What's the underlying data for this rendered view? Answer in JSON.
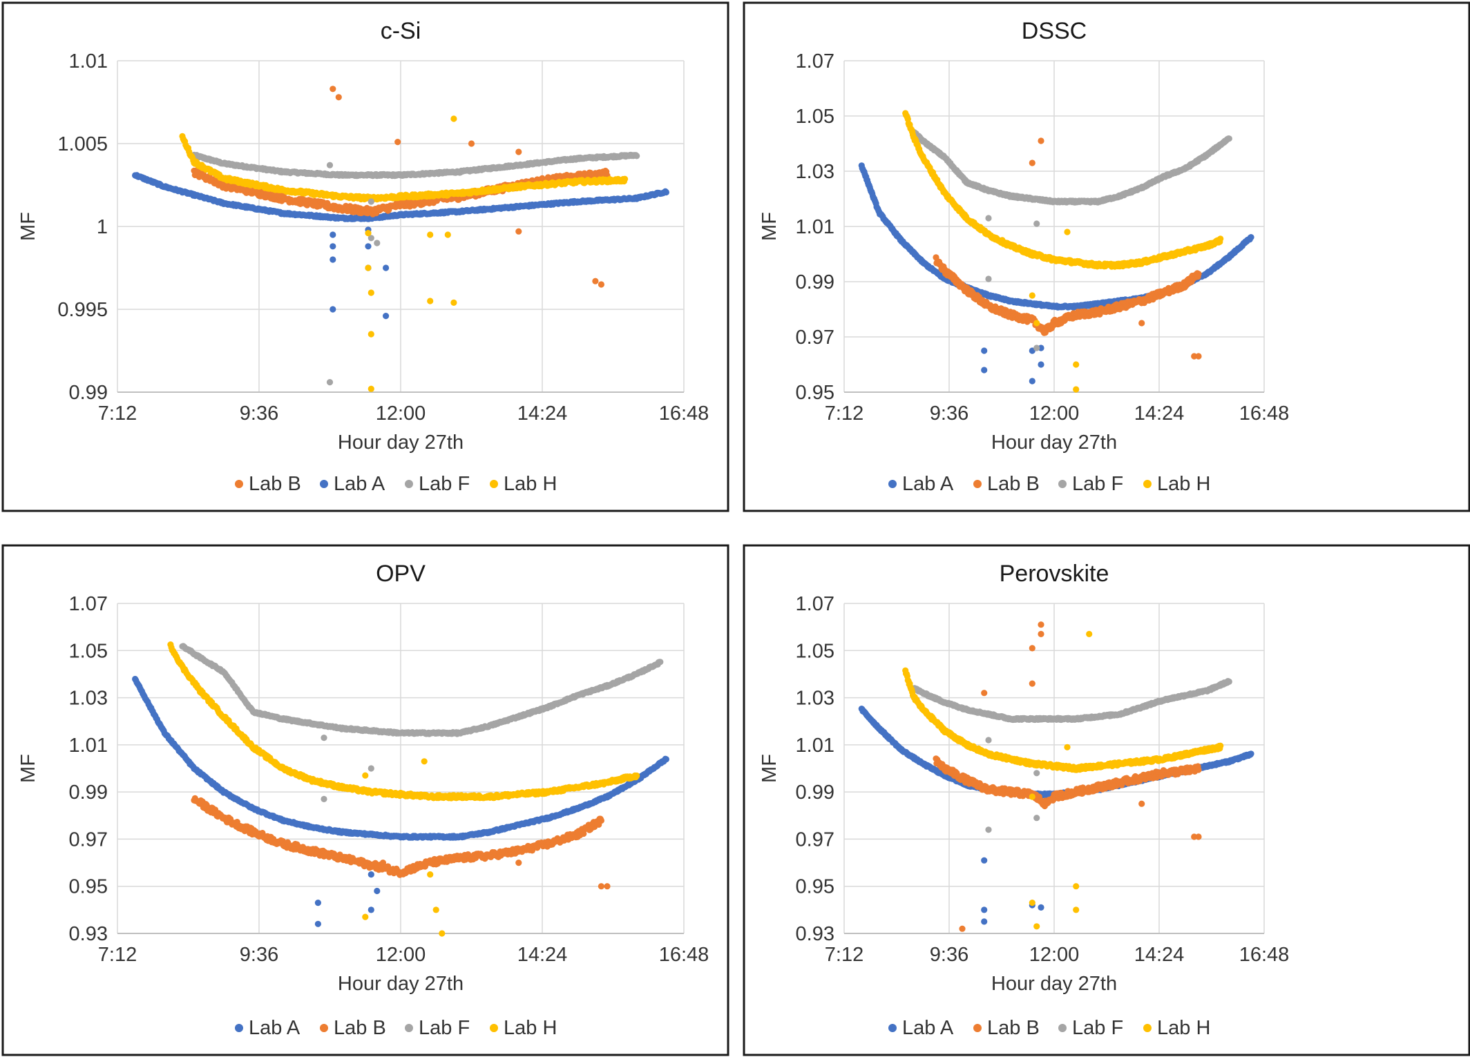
{
  "chart_data": [
    {
      "type": "scatter",
      "title": "c-Si",
      "xlabel": "Hour day 27th",
      "ylabel": "MF",
      "xlim_hours": [
        7.2,
        16.8
      ],
      "ylim": [
        0.99,
        1.01
      ],
      "x_ticks": [
        "7:12",
        "9:36",
        "12:00",
        "14:24",
        "16:48"
      ],
      "y_ticks": [
        "0.99",
        "0.995",
        "1",
        "1.005",
        "1.01"
      ],
      "grid": "horizontal",
      "legend_position": "bottom",
      "legend_order": [
        "Lab B",
        "Lab A",
        "Lab F",
        "Lab H"
      ],
      "series": [
        {
          "name": "Lab A",
          "color": "#4472C4",
          "x_hours": [
            7.5,
            8.0,
            9.0,
            10.0,
            11.0,
            11.5,
            12.0,
            13.0,
            14.0,
            15.0,
            16.0,
            16.5
          ],
          "y": [
            1.0031,
            1.0024,
            1.0014,
            1.0008,
            1.0005,
            1.0005,
            1.0007,
            1.0009,
            1.0012,
            1.0015,
            1.0017,
            1.0021
          ]
        },
        {
          "name": "Lab B",
          "color": "#ED7D31",
          "x_hours": [
            8.5,
            9.0,
            10.0,
            11.0,
            11.5,
            12.0,
            13.0,
            14.0,
            14.5,
            15.0,
            15.5
          ],
          "y": [
            1.0033,
            1.0025,
            1.0017,
            1.0011,
            1.0009,
            1.0013,
            1.0018,
            1.0025,
            1.0028,
            1.003,
            1.0032
          ]
        },
        {
          "name": "Lab F",
          "color": "#A5A5A5",
          "x_hours": [
            8.5,
            9.0,
            10.0,
            11.0,
            12.0,
            13.0,
            14.0,
            15.0,
            16.0
          ],
          "y": [
            1.0043,
            1.0038,
            1.0033,
            1.0031,
            1.0031,
            1.0033,
            1.0037,
            1.0041,
            1.0043
          ]
        },
        {
          "name": "Lab H",
          "color": "#FFC000",
          "x_hours": [
            8.3,
            8.5,
            9.0,
            10.0,
            11.0,
            11.5,
            12.0,
            13.0,
            14.0,
            15.0,
            15.8
          ],
          "y": [
            1.0054,
            1.0039,
            1.0029,
            1.0022,
            1.0018,
            1.0017,
            1.0018,
            1.002,
            1.0024,
            1.0027,
            1.0028
          ]
        }
      ],
      "outliers": [
        {
          "series": "Lab B",
          "x_hours": [
            10.85,
            10.95,
            11.95,
            13.2,
            14.0,
            15.3,
            15.4,
            14.0
          ],
          "y": [
            1.0083,
            1.0078,
            1.0051,
            1.005,
            1.0045,
            0.9967,
            0.9965,
            0.9997
          ]
        },
        {
          "series": "Lab A",
          "x_hours": [
            10.85,
            10.85,
            10.85,
            10.85,
            11.45,
            11.45,
            11.45,
            11.75,
            11.75
          ],
          "y": [
            0.9995,
            0.9988,
            0.998,
            0.995,
            0.9998,
            0.9988,
            0.9975,
            0.9975,
            0.9946
          ]
        },
        {
          "series": "Lab F",
          "x_hours": [
            10.8,
            10.8,
            11.5,
            11.5,
            11.6
          ],
          "y": [
            1.0037,
            0.9906,
            1.0015,
            0.9993,
            0.999
          ]
        },
        {
          "series": "Lab H",
          "x_hours": [
            11.45,
            11.45,
            11.5,
            11.5,
            11.5,
            12.5,
            12.5,
            12.8,
            12.9,
            12.9
          ],
          "y": [
            0.9996,
            0.9975,
            0.996,
            0.9935,
            0.9902,
            0.9995,
            0.9955,
            0.9995,
            0.9954,
            1.0065
          ]
        }
      ]
    },
    {
      "type": "scatter",
      "title": "DSSC",
      "xlabel": "Hour day 27th",
      "ylabel": "MF",
      "xlim_hours": [
        7.2,
        16.8
      ],
      "ylim": [
        0.95,
        1.07
      ],
      "x_ticks": [
        "7:12",
        "9:36",
        "12:00",
        "14:24",
        "16:48"
      ],
      "y_ticks": [
        "0.95",
        "0.97",
        "0.99",
        "1.01",
        "1.03",
        "1.05",
        "1.07"
      ],
      "grid": "horizontal",
      "legend_position": "bottom",
      "legend_order": [
        "Lab A",
        "Lab B",
        "Lab F",
        "Lab H"
      ],
      "series": [
        {
          "name": "Lab A",
          "color": "#4472C4",
          "x_hours": [
            7.6,
            8.0,
            8.5,
            9.0,
            9.5,
            10.0,
            10.5,
            11.0,
            11.5,
            12.0,
            12.5,
            13.0,
            13.5,
            14.0,
            14.5,
            15.0,
            15.5,
            16.0,
            16.5
          ],
          "y": [
            1.032,
            1.015,
            1.005,
            0.997,
            0.991,
            0.988,
            0.985,
            0.983,
            0.982,
            0.981,
            0.981,
            0.982,
            0.983,
            0.984,
            0.986,
            0.989,
            0.993,
            0.999,
            1.006
          ]
        },
        {
          "name": "Lab B",
          "color": "#ED7D31",
          "x_hours": [
            9.3,
            9.5,
            10.0,
            10.5,
            11.0,
            11.5,
            11.8,
            12.0,
            12.5,
            13.0,
            13.5,
            14.0,
            14.5,
            15.0,
            15.3
          ],
          "y": [
            0.998,
            0.994,
            0.987,
            0.981,
            0.978,
            0.976,
            0.972,
            0.975,
            0.978,
            0.979,
            0.981,
            0.983,
            0.986,
            0.989,
            0.993
          ]
        },
        {
          "name": "Lab F",
          "color": "#A5A5A5",
          "x_hours": [
            8.8,
            9.0,
            9.5,
            10.0,
            10.5,
            11.0,
            11.5,
            12.0,
            12.5,
            13.0,
            13.5,
            14.0,
            14.5,
            15.0,
            15.5,
            16.0
          ],
          "y": [
            1.044,
            1.041,
            1.035,
            1.026,
            1.023,
            1.021,
            1.02,
            1.019,
            1.019,
            1.019,
            1.021,
            1.024,
            1.028,
            1.031,
            1.036,
            1.042
          ]
        },
        {
          "name": "Lab H",
          "color": "#FFC000",
          "x_hours": [
            8.6,
            8.8,
            9.0,
            9.5,
            10.0,
            10.5,
            11.0,
            11.5,
            12.0,
            12.5,
            13.0,
            13.5,
            14.0,
            14.5,
            15.0,
            15.5,
            15.8
          ],
          "y": [
            1.051,
            1.042,
            1.035,
            1.022,
            1.013,
            1.007,
            1.003,
            1.0,
            0.998,
            0.997,
            0.996,
            0.996,
            0.997,
            0.999,
            1.001,
            1.003,
            1.005
          ]
        }
      ],
      "outliers": [
        {
          "series": "Lab B",
          "x_hours": [
            11.5,
            11.7,
            14.0,
            15.2,
            15.3
          ],
          "y": [
            1.033,
            1.041,
            0.975,
            0.963,
            0.963
          ]
        },
        {
          "series": "Lab A",
          "x_hours": [
            10.4,
            10.4,
            11.5,
            11.5,
            11.7,
            11.7
          ],
          "y": [
            0.958,
            0.965,
            0.954,
            0.965,
            0.96,
            0.966
          ]
        },
        {
          "series": "Lab F",
          "x_hours": [
            10.5,
            10.5,
            11.6,
            11.6
          ],
          "y": [
            1.013,
            0.991,
            1.011,
            0.966
          ]
        },
        {
          "series": "Lab H",
          "x_hours": [
            11.5,
            11.6,
            12.3,
            12.5,
            12.5
          ],
          "y": [
            0.985,
            0.975,
            1.008,
            0.951,
            0.96
          ]
        }
      ]
    },
    {
      "type": "scatter",
      "title": "OPV",
      "xlabel": "Hour day 27th",
      "ylabel": "MF",
      "xlim_hours": [
        7.2,
        16.8
      ],
      "ylim": [
        0.93,
        1.07
      ],
      "x_ticks": [
        "7:12",
        "9:36",
        "12:00",
        "14:24",
        "16:48"
      ],
      "y_ticks": [
        "0.93",
        "0.95",
        "0.97",
        "0.99",
        "1.01",
        "1.03",
        "1.05",
        "1.07"
      ],
      "grid": "horizontal",
      "legend_position": "bottom",
      "legend_order": [
        "Lab A",
        "Lab B",
        "Lab F",
        "Lab H"
      ],
      "series": [
        {
          "name": "Lab A",
          "color": "#4472C4",
          "x_hours": [
            7.5,
            7.8,
            8.0,
            8.5,
            9.0,
            9.5,
            10.0,
            10.5,
            11.0,
            11.5,
            12.0,
            12.5,
            13.0,
            13.5,
            14.0,
            14.5,
            15.0,
            15.5,
            16.0,
            16.5
          ],
          "y": [
            1.038,
            1.024,
            1.015,
            1.0,
            0.99,
            0.983,
            0.978,
            0.975,
            0.973,
            0.972,
            0.971,
            0.971,
            0.971,
            0.973,
            0.976,
            0.979,
            0.983,
            0.988,
            0.995,
            1.004
          ]
        },
        {
          "name": "Lab B",
          "color": "#ED7D31",
          "x_hours": [
            8.5,
            9.0,
            9.5,
            10.0,
            10.5,
            11.0,
            11.5,
            12.0,
            12.5,
            13.0,
            13.5,
            14.0,
            14.5,
            15.0,
            15.4
          ],
          "y": [
            0.987,
            0.979,
            0.973,
            0.968,
            0.965,
            0.962,
            0.959,
            0.956,
            0.96,
            0.962,
            0.963,
            0.965,
            0.968,
            0.972,
            0.978
          ]
        },
        {
          "name": "Lab F",
          "color": "#A5A5A5",
          "x_hours": [
            8.3,
            8.6,
            9.0,
            9.5,
            10.0,
            10.5,
            11.0,
            11.5,
            12.0,
            12.5,
            13.0,
            13.5,
            14.0,
            14.5,
            15.0,
            15.5,
            16.0,
            16.4
          ],
          "y": [
            1.052,
            1.047,
            1.041,
            1.024,
            1.021,
            1.019,
            1.017,
            1.016,
            1.015,
            1.015,
            1.015,
            1.018,
            1.022,
            1.026,
            1.031,
            1.035,
            1.04,
            1.045
          ]
        },
        {
          "name": "Lab H",
          "color": "#FFC000",
          "x_hours": [
            8.1,
            8.3,
            8.6,
            9.0,
            9.5,
            10.0,
            10.5,
            11.0,
            11.5,
            12.0,
            12.5,
            13.0,
            13.5,
            14.0,
            14.5,
            15.0,
            15.5,
            16.0
          ],
          "y": [
            1.052,
            1.043,
            1.033,
            1.022,
            1.009,
            1.0,
            0.995,
            0.992,
            0.99,
            0.989,
            0.988,
            0.988,
            0.988,
            0.989,
            0.99,
            0.992,
            0.994,
            0.997
          ]
        }
      ],
      "outliers": [
        {
          "series": "Lab B",
          "x_hours": [
            11.7,
            14.0,
            15.4,
            15.5
          ],
          "y": [
            0.96,
            0.96,
            0.95,
            0.95
          ]
        },
        {
          "series": "Lab A",
          "x_hours": [
            10.6,
            10.6,
            11.5,
            11.5,
            11.6
          ],
          "y": [
            0.943,
            0.934,
            0.955,
            0.94,
            0.948
          ]
        },
        {
          "series": "Lab F",
          "x_hours": [
            10.7,
            10.7,
            11.5
          ],
          "y": [
            1.013,
            0.987,
            1.0
          ]
        },
        {
          "series": "Lab H",
          "x_hours": [
            11.4,
            11.4,
            12.4,
            12.5,
            12.6,
            12.7
          ],
          "y": [
            0.997,
            0.937,
            1.003,
            0.955,
            0.94,
            0.93
          ]
        }
      ]
    },
    {
      "type": "scatter",
      "title": "Perovskite",
      "xlabel": "Hour day 27th",
      "ylabel": "MF",
      "xlim_hours": [
        7.2,
        16.8
      ],
      "ylim": [
        0.93,
        1.07
      ],
      "x_ticks": [
        "7:12",
        "9:36",
        "12:00",
        "14:24",
        "16:48"
      ],
      "y_ticks": [
        "0.93",
        "0.95",
        "0.97",
        "0.99",
        "1.01",
        "1.03",
        "1.05",
        "1.07"
      ],
      "grid": "horizontal",
      "legend_position": "bottom",
      "legend_order": [
        "Lab A",
        "Lab B",
        "Lab F",
        "Lab H"
      ],
      "series": [
        {
          "name": "Lab A",
          "color": "#4472C4",
          "x_hours": [
            7.6,
            8.0,
            8.5,
            9.0,
            9.5,
            10.0,
            10.5,
            11.0,
            11.5,
            12.0,
            12.5,
            13.0,
            13.5,
            14.0,
            14.5,
            15.0,
            15.5,
            16.0,
            16.5
          ],
          "y": [
            1.025,
            1.017,
            1.008,
            1.002,
            0.997,
            0.993,
            0.991,
            0.99,
            0.989,
            0.989,
            0.99,
            0.991,
            0.993,
            0.995,
            0.997,
            0.999,
            1.001,
            1.003,
            1.006
          ]
        },
        {
          "name": "Lab B",
          "color": "#ED7D31",
          "x_hours": [
            9.3,
            9.5,
            10.0,
            10.5,
            11.0,
            11.5,
            11.8,
            12.0,
            12.5,
            13.0,
            13.5,
            14.0,
            14.5,
            15.0,
            15.3
          ],
          "y": [
            1.003,
            1.0,
            0.995,
            0.991,
            0.99,
            0.989,
            0.985,
            0.988,
            0.99,
            0.992,
            0.994,
            0.996,
            0.998,
            0.999,
            1.0
          ]
        },
        {
          "name": "Lab F",
          "color": "#A5A5A5",
          "x_hours": [
            8.8,
            9.0,
            9.5,
            10.0,
            10.5,
            11.0,
            11.5,
            12.0,
            12.5,
            13.0,
            13.5,
            14.0,
            14.5,
            15.0,
            15.5,
            16.0
          ],
          "y": [
            1.034,
            1.032,
            1.028,
            1.025,
            1.023,
            1.021,
            1.021,
            1.021,
            1.021,
            1.022,
            1.023,
            1.026,
            1.029,
            1.031,
            1.033,
            1.037
          ]
        },
        {
          "name": "Lab H",
          "color": "#FFC000",
          "x_hours": [
            8.6,
            8.8,
            9.0,
            9.5,
            10.0,
            10.5,
            11.0,
            11.5,
            12.0,
            12.5,
            13.0,
            13.5,
            14.0,
            14.5,
            15.0,
            15.5,
            15.8
          ],
          "y": [
            1.041,
            1.03,
            1.025,
            1.016,
            1.01,
            1.006,
            1.004,
            1.002,
            1.001,
            1.0,
            1.001,
            1.002,
            1.003,
            1.004,
            1.006,
            1.008,
            1.009
          ]
        }
      ],
      "outliers": [
        {
          "series": "Lab B",
          "x_hours": [
            10.4,
            11.5,
            11.5,
            11.7,
            11.7,
            14.0,
            15.2,
            15.3,
            9.9
          ],
          "y": [
            1.032,
            1.036,
            1.051,
            1.061,
            1.057,
            0.985,
            0.971,
            0.971,
            0.932
          ]
        },
        {
          "series": "Lab A",
          "x_hours": [
            10.4,
            10.4,
            10.4,
            11.5,
            11.7
          ],
          "y": [
            0.961,
            0.94,
            0.935,
            0.942,
            0.941
          ]
        },
        {
          "series": "Lab F",
          "x_hours": [
            10.5,
            10.5,
            11.6,
            11.6
          ],
          "y": [
            1.012,
            0.974,
            0.998,
            0.979
          ]
        },
        {
          "series": "Lab H",
          "x_hours": [
            11.5,
            11.5,
            11.6,
            12.3,
            12.5,
            12.5,
            12.8
          ],
          "y": [
            0.988,
            0.943,
            0.933,
            1.009,
            0.95,
            0.94,
            1.057
          ]
        }
      ]
    }
  ]
}
